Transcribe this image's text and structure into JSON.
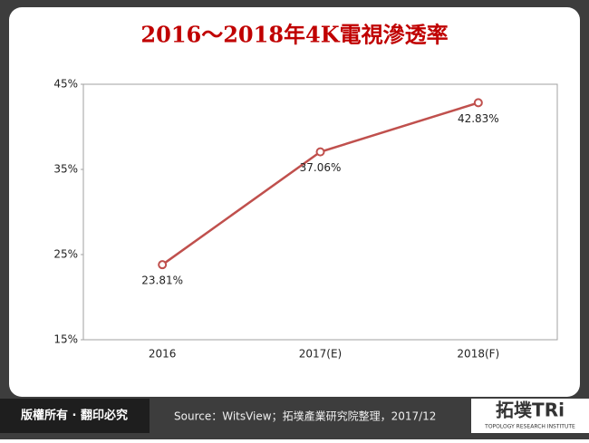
{
  "chart_data": {
    "type": "line",
    "title": "2016～2018年4K電視滲透率",
    "categories": [
      "2016",
      "2017(E)",
      "2018(F)"
    ],
    "series": [
      {
        "name": "4K電視滲透率",
        "color": "#c0504d",
        "values": [
          23.81,
          37.06,
          42.83
        ],
        "value_labels": [
          "23.81%",
          "37.06%",
          "42.83%"
        ]
      }
    ],
    "ylim": [
      15,
      45
    ],
    "yticks": [
      {
        "value": 15,
        "label": "15%"
      },
      {
        "value": 25,
        "label": "25%"
      },
      {
        "value": 35,
        "label": "35%"
      },
      {
        "value": 45,
        "label": "45%"
      }
    ],
    "grid": false
  },
  "footer": {
    "rights": "版權所有 · 翻印必究",
    "source": "Source：WitsView；拓墣產業研究院整理，2017/12",
    "logo": "拓墣TRi",
    "logo_subtitle": "TOPOLOGY RESEARCH INSTITUTE"
  }
}
